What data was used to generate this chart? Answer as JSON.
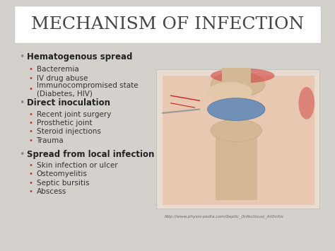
{
  "title": "MECHANISM OF INFECTION",
  "title_fontsize": 18,
  "title_font": "serif",
  "title_color": "#444444",
  "background_color": "#d4d0cb",
  "slide_bg": "#f5f5f5",
  "header_bg": "#ffffff",
  "bullet_color": "#888888",
  "sub_bullet_color": "#c0392b",
  "text_color": "#333333",
  "bold_color": "#222222",
  "url_text": "http://www.physio-pedia.com/Septic_(Infectious)_Arthritis",
  "sections": [
    {
      "header": "Hematogenous spread",
      "items": [
        "Bacteremia",
        "IV drug abuse",
        "Immunocompromised state\n(Diabetes, HIV)"
      ]
    },
    {
      "header": "Direct inoculation",
      "items": [
        "Recent joint surgery",
        "Prosthetic joint",
        "Steroid injections",
        "Trauma"
      ]
    },
    {
      "header": "Spread from local infection",
      "items": [
        "Skin infection or ulcer",
        "Osteomyelitis",
        "Septic bursitis",
        "Abscess"
      ]
    }
  ]
}
